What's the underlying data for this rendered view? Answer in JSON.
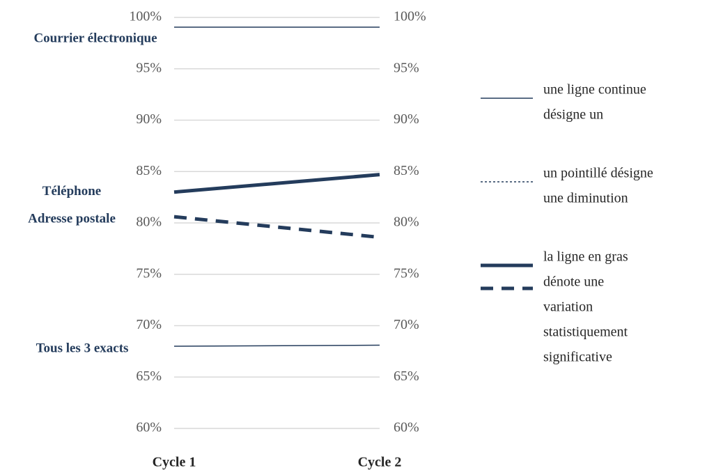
{
  "chart_data": {
    "type": "slope",
    "categories": [
      "Cycle 1",
      "Cycle 2"
    ],
    "ylim": [
      60,
      100
    ],
    "yticks": [
      {
        "value": 60,
        "label": "60%"
      },
      {
        "value": 65,
        "label": "65%"
      },
      {
        "value": 70,
        "label": "70%"
      },
      {
        "value": 75,
        "label": "75%"
      },
      {
        "value": 80,
        "label": "80%"
      },
      {
        "value": 85,
        "label": "85%"
      },
      {
        "value": 90,
        "label": "90%"
      },
      {
        "value": 95,
        "label": "95%"
      },
      {
        "value": 100,
        "label": "100%"
      }
    ],
    "grid": true,
    "series": [
      {
        "name": "Courrier électronique",
        "color": "#243c5c",
        "width": "thin",
        "dashed": false,
        "values": [
          99.05,
          99.05
        ]
      },
      {
        "name": "Téléphone",
        "color": "#243c5c",
        "width": "bold",
        "dashed": false,
        "values": [
          83.0,
          84.7
        ]
      },
      {
        "name": "Adresse postale",
        "color": "#243c5c",
        "width": "bold",
        "dashed": true,
        "values": [
          80.6,
          78.6
        ]
      },
      {
        "name": "Tous les 3 exacts",
        "color": "#243c5c",
        "width": "thin",
        "dashed": false,
        "values": [
          68.0,
          68.1
        ]
      }
    ],
    "legend": [
      {
        "text": [
          "une ligne continue",
          "désigne un"
        ],
        "symbols": [
          {
            "width": "thin",
            "dashed": false
          }
        ]
      },
      {
        "text": [
          "un pointillé désigne",
          "une diminution"
        ],
        "symbols": [
          {
            "width": "thin",
            "dashed": true
          }
        ]
      },
      {
        "text": [
          "la ligne en gras",
          "dénote une",
          "variation",
          "statistiquement",
          "significative"
        ],
        "symbols": [
          {
            "width": "bold",
            "dashed": false
          },
          {
            "width": "bold",
            "dashed": true
          }
        ]
      }
    ]
  }
}
